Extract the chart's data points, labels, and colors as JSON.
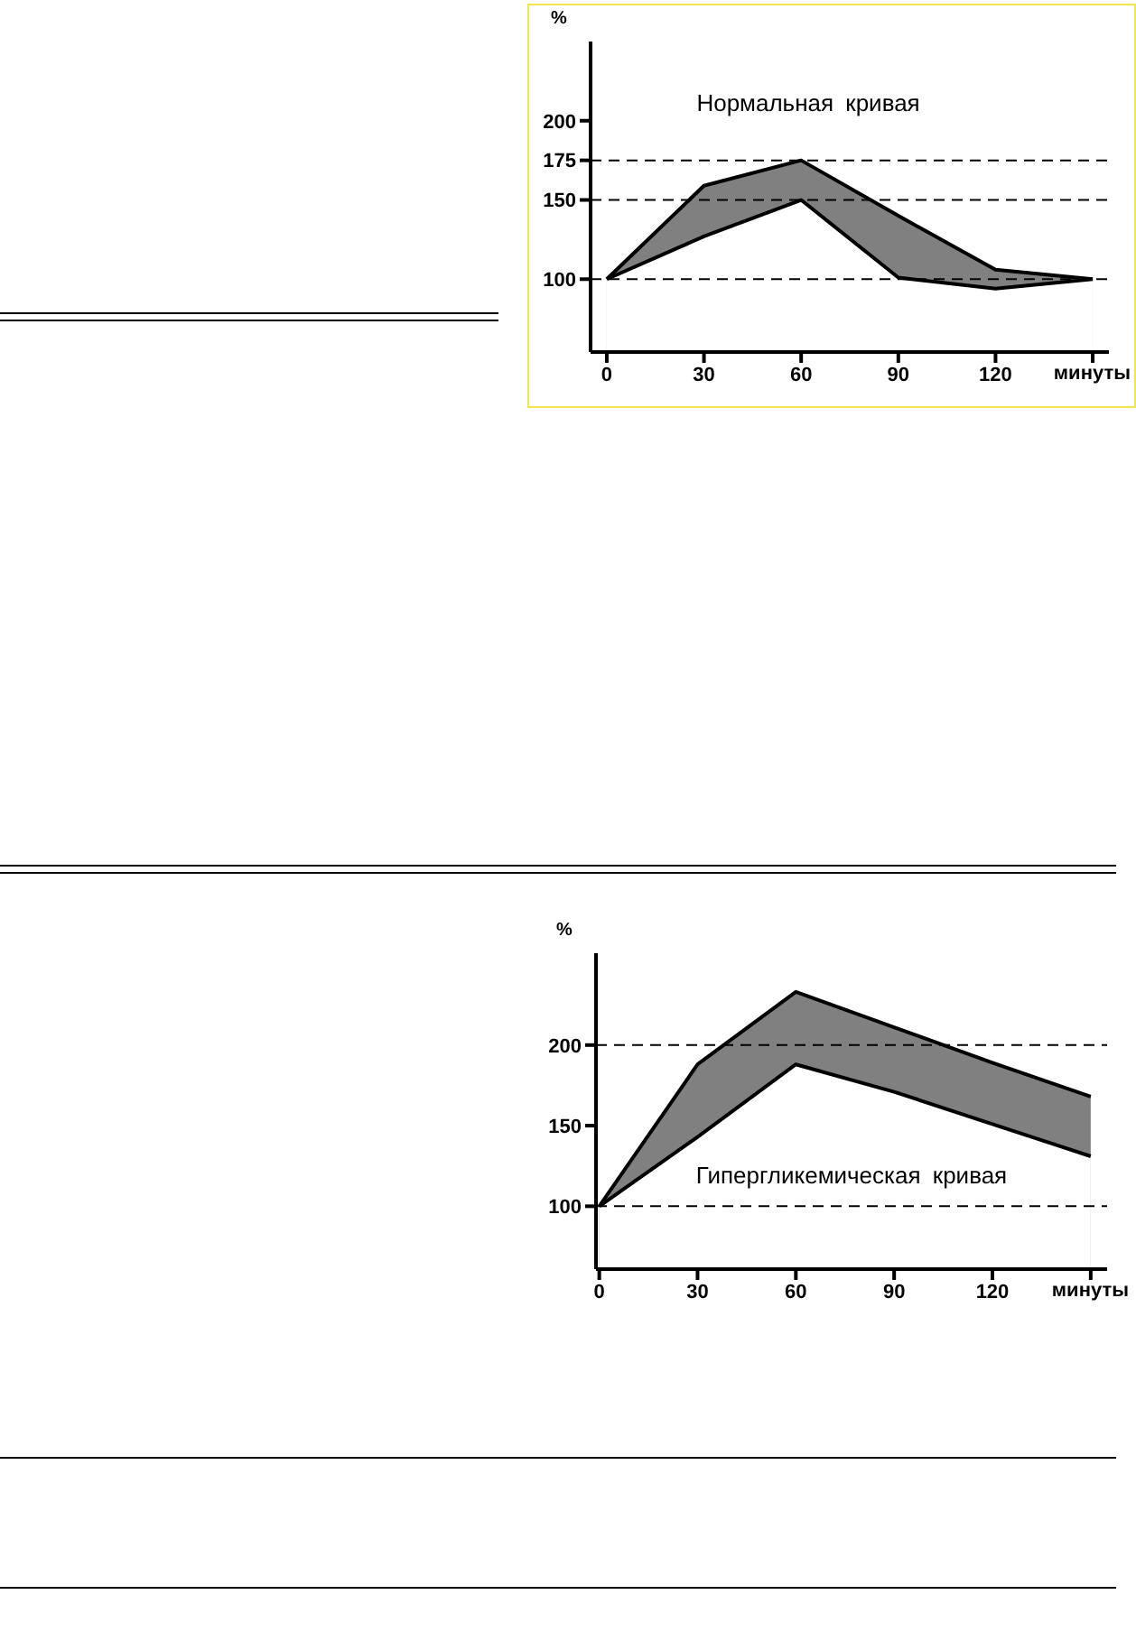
{
  "chart_data": [
    {
      "type": "area",
      "title": "Нормальная кривая",
      "xlabel": "минуты",
      "ylabel": "%",
      "x": [
        0,
        30,
        60,
        90,
        120,
        150
      ],
      "series": [
        {
          "color": "#808080",
          "values": [
            100,
            159,
            175,
            140,
            106,
            100
          ]
        },
        {
          "color": "#ffffff",
          "values": [
            100,
            127,
            150,
            101,
            94,
            100
          ]
        }
      ],
      "xlim": [
        -5,
        155
      ],
      "xticks": [
        0,
        30,
        60,
        90,
        120,
        {
          "value": 150,
          "label": null
        }
      ],
      "ylim": [
        54,
        250
      ],
      "yticks": [
        100,
        150,
        175,
        200
      ],
      "ref_lines": [
        {
          "axis": "y",
          "value": 175,
          "line_style": "dashed"
        },
        {
          "axis": "y",
          "value": 150,
          "line_style": "dashed"
        },
        {
          "axis": "y",
          "value": 100,
          "line_style": "dashed"
        }
      ],
      "grid": false,
      "legend": false
    },
    {
      "type": "area",
      "title": "Гипергликемическая кривая",
      "xlabel": "минуты",
      "ylabel": "%",
      "x": [
        0,
        30,
        60,
        90,
        120,
        150
      ],
      "series": [
        {
          "color": "#808080",
          "values": [
            100,
            188,
            233,
            211,
            189,
            168
          ]
        },
        {
          "color": "#ffffff",
          "values": [
            100,
            143,
            188,
            171,
            151,
            131
          ]
        }
      ],
      "xlim": [
        -1,
        155
      ],
      "xticks": [
        0,
        30,
        60,
        90,
        120,
        {
          "value": 150,
          "label": null
        }
      ],
      "ylim": [
        61,
        257
      ],
      "yticks": [
        100,
        150,
        200
      ],
      "ref_lines": [
        {
          "axis": "y",
          "value": 200,
          "line_style": "dashed"
        },
        {
          "axis": "y",
          "value": 100,
          "line_style": "dashed"
        }
      ],
      "grid": false,
      "legend": false
    }
  ]
}
